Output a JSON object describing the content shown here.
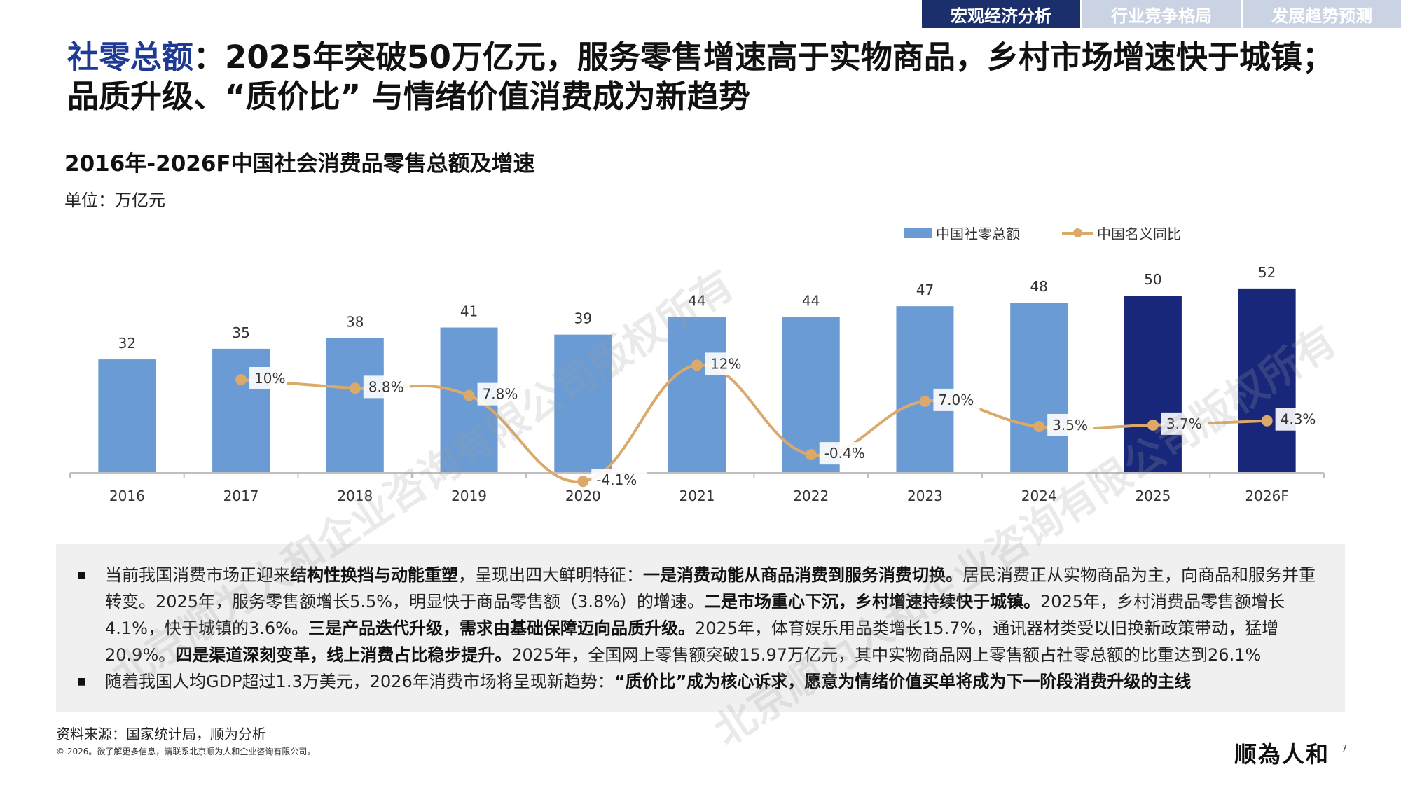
{
  "tabs": [
    {
      "label": "宏观经济分析",
      "active": true
    },
    {
      "label": "行业竞争格局",
      "active": false
    },
    {
      "label": "发展趋势预测",
      "active": false
    }
  ],
  "headline": {
    "accent": "社零总额",
    "line1_rest": "：2025年突破50万亿元，服务零售增速高于实物商品，乡村市场增速快于城镇；",
    "line2": "品质升级、“质价比” 与情绪价值消费成为新趋势"
  },
  "chart_title": "2016年-2026F中国社会消费品零售总额及增速",
  "unit_label": "单位：万亿元",
  "legend": {
    "bar": "中国社零总额",
    "line": "中国名义同比"
  },
  "colors": {
    "bar": "#6a9bd4",
    "bar_highlight": "#18277a",
    "line": "#dba96a",
    "axis": "#bfbfbf"
  },
  "chart_data": {
    "type": "bar+line",
    "categories": [
      "2016",
      "2017",
      "2018",
      "2019",
      "2020",
      "2021",
      "2022",
      "2023",
      "2024",
      "2025",
      "2026F"
    ],
    "series": [
      {
        "name": "中国社零总额",
        "type": "bar",
        "values": [
          32,
          35,
          38,
          41,
          39,
          44,
          44,
          47,
          48,
          50,
          52
        ],
        "highlight": [
          "2025",
          "2026F"
        ]
      },
      {
        "name": "中国名义同比",
        "type": "line",
        "values": [
          null,
          10,
          8.8,
          7.8,
          -4.1,
          12,
          -0.4,
          7.0,
          3.5,
          3.7,
          4.3
        ],
        "labels": [
          "",
          "10%",
          "8.8%",
          "7.8%",
          "-4.1%",
          "12%",
          "-0.4%",
          "7.0%",
          "3.5%",
          "3.7%",
          "4.3%"
        ]
      }
    ],
    "bar_labels": [
      "32",
      "35",
      "38",
      "41",
      "39",
      "44",
      "44",
      "47",
      "48",
      "50",
      "52"
    ],
    "grid": false,
    "legend_position": "top-right"
  },
  "textbox": {
    "p1_parts": [
      {
        "t": "当前我国消费市场正迎来",
        "b": false
      },
      {
        "t": "结构性换挡与动能重塑",
        "b": true
      },
      {
        "t": "，呈现出四大鲜明特征：",
        "b": false
      },
      {
        "t": "一是消费动能从商品消费到服务消费切换。",
        "b": true
      },
      {
        "t": "居民消费正从实物商品为主，向商品和服务并重转变。2025年，服务零售额增长5.5%，明显快于商品零售额（3.8%）的增速。",
        "b": false
      },
      {
        "t": "二是市场重心下沉，乡村增速持续快于城镇。",
        "b": true
      },
      {
        "t": "2025年，乡村消费品零售额增长4.1%，快于城镇的3.6%。",
        "b": false
      },
      {
        "t": "三是产品迭代升级，需求由基础保障迈向品质升级。",
        "b": true
      },
      {
        "t": "2025年，体育娱乐用品类增长15.7%，通讯器材类受以旧换新政策带动，猛增20.9%。",
        "b": false
      },
      {
        "t": "四是渠道深刻变革，线上消费占比稳步提升。",
        "b": true
      },
      {
        "t": "2025年，全国网上零售额突破15.97万亿元，其中实物商品网上零售额占社零总额的比重达到26.1%",
        "b": false
      }
    ],
    "p2_parts": [
      {
        "t": "随着我国人均GDP超过1.3万美元，2026年消费市场将呈现新趋势：",
        "b": false
      },
      {
        "t": "“质价比”成为核心诉求，愿意为情绪价值买单将成为下一阶段消费升级的主线",
        "b": true
      }
    ],
    "bullet": "■"
  },
  "source": "资料来源：国家统计局，顺为分析",
  "copyright": "© 2026。欲了解更多信息，请联系北京顺为人和企业咨询有限公司。",
  "logo": "顺為人和",
  "page_number": "7",
  "watermark": "北京顺为人和企业咨询有限公司版权所有"
}
